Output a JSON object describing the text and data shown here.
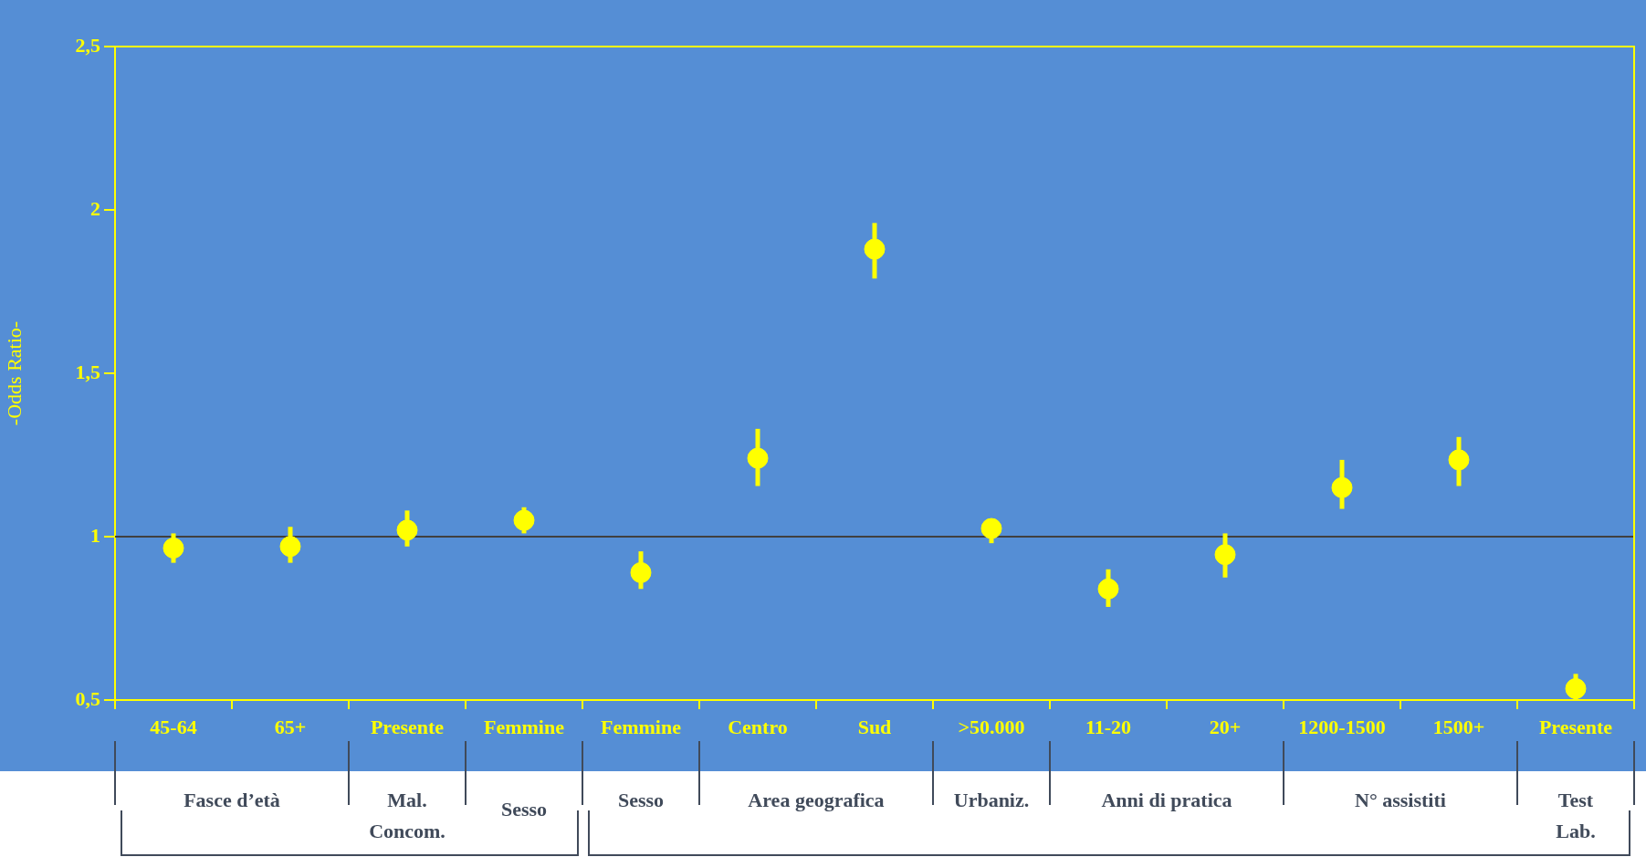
{
  "chart_data": {
    "type": "scatter",
    "ylabel": "-Odds Ratio-",
    "categories": [
      "45-64",
      "65+",
      "Presente",
      "Femmine",
      "Femmine",
      "Centro",
      "Sud",
      ">50.000",
      "11-20",
      "20+",
      "1200-1500",
      "1500+",
      "Presente"
    ],
    "series": [
      {
        "color": "#ffff00",
        "values": [
          0.965,
          0.97,
          1.02,
          1.05,
          0.89,
          1.24,
          1.88,
          1.025,
          0.84,
          0.945,
          1.15,
          1.235,
          0.535
        ],
        "errors": [
          [
            0.92,
            1.01
          ],
          [
            0.92,
            1.03
          ],
          [
            0.97,
            1.08
          ],
          [
            1.01,
            1.09
          ],
          [
            0.84,
            0.955
          ],
          [
            1.155,
            1.33
          ],
          [
            1.79,
            1.96
          ],
          [
            0.98,
            1.05
          ],
          [
            0.785,
            0.9
          ],
          [
            0.875,
            1.01
          ],
          [
            1.085,
            1.235
          ],
          [
            1.155,
            1.305
          ],
          [
            0.5,
            0.58
          ]
        ]
      }
    ],
    "ylim": [
      0.5,
      2.5
    ],
    "yticks": [
      {
        "value": 0.5,
        "label": "0,5"
      },
      1,
      {
        "value": 1.5,
        "label": "1,5"
      },
      2,
      {
        "value": 2.5,
        "label": "2,5"
      }
    ],
    "ref_lines": [
      {
        "axis": "y",
        "value": 1,
        "color": "#404040"
      }
    ],
    "grid": false,
    "legend": false,
    "marker": "circle",
    "annotations": [
      "Fasce d’età",
      "Mal. Concom.",
      "Sesso",
      "Sesso",
      "Area geografica",
      "Urbaniz.",
      "Anni di pratica",
      "N° assistiti",
      "Test Lab."
    ]
  }
}
